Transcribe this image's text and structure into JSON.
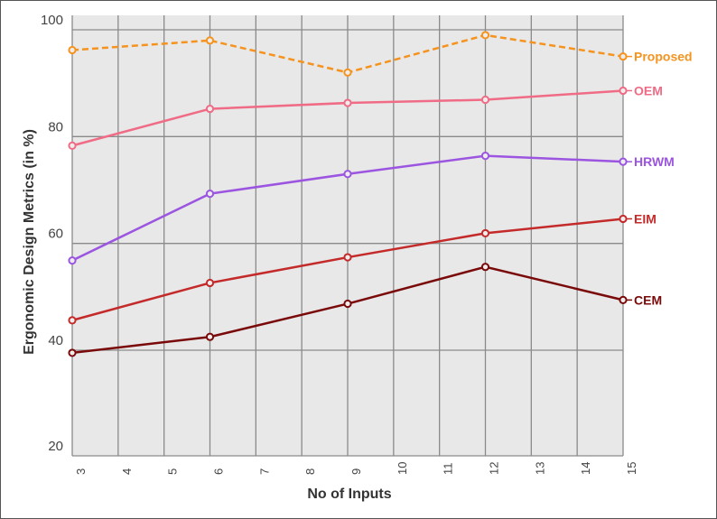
{
  "chart_data": {
    "type": "line",
    "title": "",
    "xlabel": "No of Inputs",
    "ylabel": "Ergonomic Design Metrics (in %)",
    "x_ticks": [
      "3",
      "4",
      "5",
      "6",
      "7",
      "8",
      "9",
      "10",
      "11",
      "12",
      "13",
      "14",
      "15"
    ],
    "y_ticks": [
      "20",
      "40",
      "60",
      "80",
      "100"
    ],
    "xlim": [
      3,
      15
    ],
    "ylim": [
      20,
      100
    ],
    "grid": true,
    "legend": "inline labels at right end of each line",
    "background_color": "#e8e8e8",
    "x": [
      3,
      6,
      9,
      12,
      15
    ],
    "series": [
      {
        "name": "Proposed",
        "values": [
          96.2,
          98.0,
          92.0,
          99.0,
          95.0
        ],
        "color": "#f5931e",
        "dashed": true
      },
      {
        "name": "OEM",
        "values": [
          78.3,
          85.2,
          86.3,
          86.9,
          88.6
        ],
        "color": "#f06b85",
        "dashed": false
      },
      {
        "name": "HRWM",
        "values": [
          56.8,
          69.3,
          73.0,
          76.4,
          75.3
        ],
        "color": "#9b55e0",
        "dashed": false
      },
      {
        "name": "EIM",
        "values": [
          45.6,
          52.6,
          57.4,
          61.9,
          64.6
        ],
        "color": "#c42a2a",
        "dashed": false
      },
      {
        "name": "CEM",
        "values": [
          39.5,
          42.5,
          48.7,
          55.6,
          49.4
        ],
        "color": "#7a0a0a",
        "dashed": false
      }
    ]
  }
}
